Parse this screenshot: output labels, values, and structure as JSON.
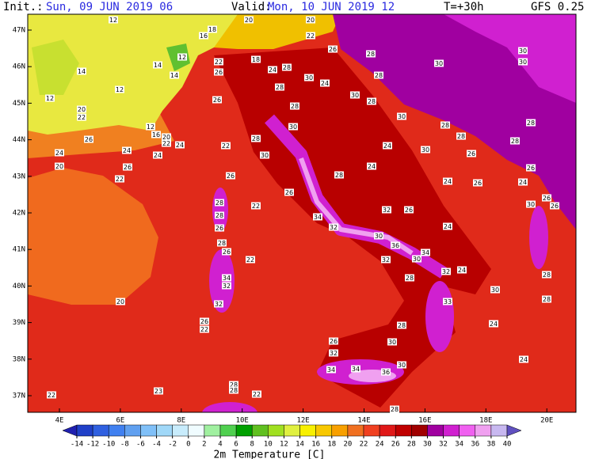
{
  "header": {
    "init_label": "Init.:",
    "init": "Sun, 09 JUN 2019  06",
    "valid_label": "Valid:",
    "valid": "Mon, 10 JUN 2019  12",
    "lead": "T=+30h",
    "model": "GFS 0.25"
  },
  "map": {
    "lat_labels": [
      "47N",
      "46N",
      "45N",
      "44N",
      "43N",
      "42N",
      "41N",
      "40N",
      "39N",
      "38N",
      "37N"
    ],
    "lon_labels": [
      "4E",
      "6E",
      "8E",
      "10E",
      "12E",
      "14E",
      "16E",
      "18E",
      "20E"
    ],
    "point_labels": [
      "12",
      "16",
      "18",
      "20",
      "20",
      "22",
      "12",
      "14",
      "14",
      "14",
      "12",
      "12",
      "20",
      "22",
      "22",
      "26",
      "18",
      "24",
      "28",
      "30",
      "24",
      "26",
      "28",
      "28",
      "30",
      "30",
      "30",
      "26",
      "28",
      "28",
      "30",
      "28",
      "30",
      "28",
      "28",
      "12",
      "16",
      "20",
      "22",
      "26",
      "24",
      "22",
      "28",
      "30",
      "24",
      "30",
      "28",
      "28",
      "26",
      "24",
      "24",
      "24",
      "20",
      "26",
      "30",
      "28",
      "24",
      "24",
      "26",
      "26",
      "22",
      "26",
      "26",
      "22",
      "24",
      "26",
      "26",
      "30",
      "28",
      "28",
      "26",
      "34",
      "32",
      "26",
      "32",
      "24",
      "30",
      "28",
      "26",
      "36",
      "34",
      "22",
      "32",
      "30",
      "24",
      "32",
      "34",
      "32",
      "28",
      "30",
      "28",
      "20",
      "32",
      "33",
      "28",
      "26",
      "22",
      "28",
      "24",
      "26",
      "32",
      "30",
      "24",
      "30",
      "34",
      "34",
      "36",
      "28",
      "28",
      "23",
      "22",
      "22",
      "28"
    ]
  },
  "legend": {
    "title": "2m Temperature [C]",
    "ticks": [
      -14,
      -12,
      -10,
      -8,
      -6,
      -4,
      -2,
      0,
      2,
      4,
      6,
      8,
      10,
      12,
      14,
      16,
      18,
      20,
      22,
      24,
      26,
      28,
      30,
      32,
      34,
      36,
      38,
      40
    ],
    "colors": [
      "#2020b0",
      "#2040c8",
      "#3060e0",
      "#4080f0",
      "#60a0f0",
      "#80c0f8",
      "#a0d8f8",
      "#c8ecfc",
      "#f0fcff",
      "#a0f0a0",
      "#50d050",
      "#00a000",
      "#60c020",
      "#a0e020",
      "#e0f040",
      "#f8f000",
      "#f8c800",
      "#f8a000",
      "#f07020",
      "#f04020",
      "#e01818",
      "#c00000",
      "#a00000",
      "#a000a0",
      "#d020d0",
      "#f060f0",
      "#f0a0f0",
      "#c8b8f0",
      "#6050c0"
    ]
  }
}
